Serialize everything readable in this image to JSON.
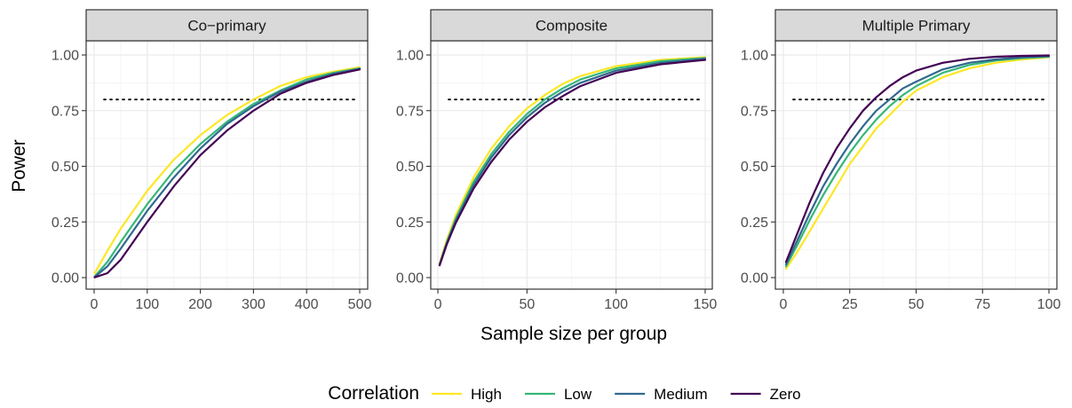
{
  "chart_data": {
    "type": "line",
    "ylabel": "Power",
    "xlabel": "Sample size per group",
    "ylim": [
      0,
      1
    ],
    "y_ticks": [
      0,
      0.25,
      0.5,
      0.75,
      1
    ],
    "y_tick_labels": [
      "0.00",
      "0.25",
      "0.50",
      "0.75",
      "1.00"
    ],
    "reference_line": {
      "y": 0.8,
      "style": "dotted"
    },
    "grid": true,
    "legend": {
      "title": "Correlation",
      "position": "bottom",
      "entries": [
        "High",
        "Low",
        "Medium",
        "Zero"
      ],
      "colors": {
        "High": "#FDE725",
        "Low": "#35B779",
        "Medium": "#31688E",
        "Zero": "#440154"
      }
    },
    "panels": [
      {
        "title": "Co−primary",
        "xlim": [
          -15,
          515
        ],
        "x_ticks": [
          0,
          100,
          200,
          300,
          400,
          500
        ],
        "x_tick_labels": [
          "0",
          "100",
          "200",
          "300",
          "400",
          "500"
        ],
        "series": [
          {
            "name": "High",
            "x": [
              1,
              25,
              50,
              100,
              150,
              200,
              250,
              300,
              350,
              400,
              450,
              500
            ],
            "y": [
              0.02,
              0.12,
              0.22,
              0.39,
              0.53,
              0.64,
              0.73,
              0.8,
              0.86,
              0.9,
              0.925,
              0.945
            ]
          },
          {
            "name": "Low",
            "x": [
              1,
              25,
              50,
              100,
              150,
              200,
              250,
              300,
              350,
              400,
              450,
              500
            ],
            "y": [
              0.005,
              0.07,
              0.16,
              0.33,
              0.48,
              0.6,
              0.7,
              0.78,
              0.84,
              0.89,
              0.92,
              0.94
            ]
          },
          {
            "name": "Medium",
            "x": [
              1,
              25,
              50,
              100,
              150,
              200,
              250,
              300,
              350,
              400,
              450,
              500
            ],
            "y": [
              0.003,
              0.05,
              0.13,
              0.3,
              0.45,
              0.58,
              0.69,
              0.77,
              0.835,
              0.88,
              0.915,
              0.938
            ]
          },
          {
            "name": "Zero",
            "x": [
              1,
              25,
              50,
              100,
              150,
              200,
              250,
              300,
              350,
              400,
              450,
              500
            ],
            "y": [
              0.001,
              0.02,
              0.08,
              0.25,
              0.41,
              0.55,
              0.66,
              0.75,
              0.825,
              0.875,
              0.91,
              0.935
            ]
          }
        ]
      },
      {
        "title": "Composite",
        "xlim": [
          -4,
          154
        ],
        "x_ticks": [
          0,
          50,
          100,
          150
        ],
        "x_tick_labels": [
          "0",
          "50",
          "100",
          "150"
        ],
        "series": [
          {
            "name": "High",
            "x": [
              1,
              5,
              10,
              20,
              30,
              40,
              50,
              60,
              70,
              80,
              100,
              125,
              150
            ],
            "y": [
              0.065,
              0.17,
              0.28,
              0.45,
              0.58,
              0.68,
              0.76,
              0.82,
              0.87,
              0.905,
              0.95,
              0.978,
              0.99
            ]
          },
          {
            "name": "Low",
            "x": [
              1,
              5,
              10,
              20,
              30,
              40,
              50,
              60,
              70,
              80,
              100,
              125,
              150
            ],
            "y": [
              0.06,
              0.16,
              0.265,
              0.43,
              0.555,
              0.655,
              0.735,
              0.8,
              0.85,
              0.89,
              0.94,
              0.972,
              0.987
            ]
          },
          {
            "name": "Medium",
            "x": [
              1,
              5,
              10,
              20,
              30,
              40,
              50,
              60,
              70,
              80,
              100,
              125,
              150
            ],
            "y": [
              0.058,
              0.155,
              0.255,
              0.415,
              0.54,
              0.64,
              0.72,
              0.785,
              0.835,
              0.875,
              0.93,
              0.965,
              0.983
            ]
          },
          {
            "name": "Zero",
            "x": [
              1,
              5,
              10,
              20,
              30,
              40,
              50,
              60,
              70,
              80,
              100,
              125,
              150
            ],
            "y": [
              0.055,
              0.15,
              0.245,
              0.4,
              0.52,
              0.62,
              0.7,
              0.765,
              0.815,
              0.86,
              0.92,
              0.958,
              0.978
            ]
          }
        ]
      },
      {
        "title": "Multiple Primary",
        "xlim": [
          -3,
          103
        ],
        "x_ticks": [
          0,
          25,
          50,
          75,
          100
        ],
        "x_tick_labels": [
          "0",
          "25",
          "50",
          "75",
          "100"
        ],
        "series": [
          {
            "name": "High",
            "x": [
              1,
              5,
              10,
              15,
              20,
              25,
              30,
              35,
              40,
              45,
              50,
              60,
              70,
              80,
              90,
              100
            ],
            "y": [
              0.04,
              0.11,
              0.21,
              0.31,
              0.41,
              0.51,
              0.59,
              0.67,
              0.73,
              0.79,
              0.84,
              0.9,
              0.94,
              0.965,
              0.98,
              0.99
            ]
          },
          {
            "name": "Low",
            "x": [
              1,
              5,
              10,
              15,
              20,
              25,
              30,
              35,
              40,
              45,
              50,
              60,
              70,
              80,
              90,
              100
            ],
            "y": [
              0.05,
              0.14,
              0.26,
              0.37,
              0.47,
              0.56,
              0.64,
              0.71,
              0.77,
              0.82,
              0.86,
              0.92,
              0.955,
              0.975,
              0.986,
              0.992
            ]
          },
          {
            "name": "Medium",
            "x": [
              1,
              5,
              10,
              15,
              20,
              25,
              30,
              35,
              40,
              45,
              50,
              60,
              70,
              80,
              90,
              100
            ],
            "y": [
              0.06,
              0.16,
              0.29,
              0.41,
              0.51,
              0.6,
              0.68,
              0.75,
              0.8,
              0.85,
              0.88,
              0.935,
              0.965,
              0.98,
              0.99,
              0.995
            ]
          },
          {
            "name": "Zero",
            "x": [
              1,
              5,
              10,
              15,
              20,
              25,
              30,
              35,
              40,
              45,
              50,
              60,
              70,
              80,
              90,
              100
            ],
            "y": [
              0.07,
              0.19,
              0.34,
              0.47,
              0.58,
              0.67,
              0.75,
              0.81,
              0.86,
              0.9,
              0.93,
              0.965,
              0.983,
              0.992,
              0.996,
              0.998
            ]
          }
        ]
      }
    ]
  }
}
